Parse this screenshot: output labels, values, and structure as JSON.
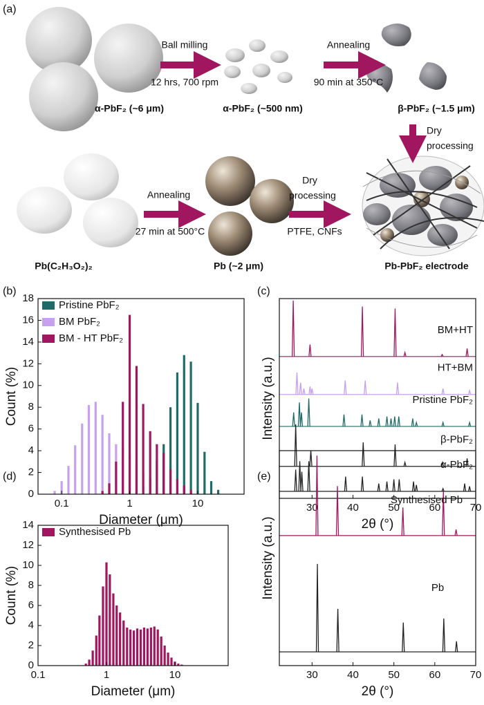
{
  "panels": [
    "(a)",
    "(b)",
    "(c)",
    "(d)",
    "(e)"
  ],
  "schematic": {
    "nodes": [
      {
        "label": "α-PbF₂ (~6 μm)"
      },
      {
        "label": "α-PbF₂ (~500 nm)"
      },
      {
        "label": "β-PbF₂ (~1.5 μm)"
      },
      {
        "label": "Pb(C₂H₃O₂)₂"
      },
      {
        "label": "Pb (~2 μm)"
      },
      {
        "label": "Pb-PbF₂ electrode"
      }
    ],
    "arrows": [
      {
        "above": [
          "Ball milling"
        ],
        "below": [
          "12 hrs, 700 rpm"
        ]
      },
      {
        "above": [
          "Annealing"
        ],
        "below": [
          "90 min at 350°C"
        ]
      },
      {
        "above": [
          "Dry",
          "processing"
        ],
        "below": []
      },
      {
        "above": [
          "Annealing"
        ],
        "below": [
          "27 min at 500°C"
        ]
      },
      {
        "above": [
          "Dry",
          "processing"
        ],
        "below": [
          "PTFE, CNFs"
        ]
      }
    ]
  },
  "chart_data": [
    {
      "type": "bar",
      "x_label": "Diameter (μm)",
      "y_label": "Count (%)",
      "log_x": true,
      "xlim": [
        0.045,
        48
      ],
      "xticks": [
        0.1,
        1,
        10
      ],
      "ylim": [
        0,
        18
      ],
      "yticks": [
        0,
        2,
        4,
        6,
        8,
        10,
        12,
        14,
        16,
        18
      ],
      "legend": "upper left",
      "series": [
        {
          "name": "Pristine PbF₂",
          "color": "#1f6b68",
          "x": [
            1.26,
            1.58,
            2,
            2.51,
            3.16,
            3.98,
            5.01,
            6.31,
            7.94,
            10,
            12.6,
            15.8,
            20
          ],
          "values": [
            0.2,
            0.7,
            1.5,
            3.1,
            4.6,
            8.0,
            11.2,
            12.8,
            12.2,
            8.4,
            3.9,
            1.2,
            0.4
          ]
        },
        {
          "name": "BM PbF₂",
          "color": "#c7a0f0",
          "x": [
            0.079,
            0.1,
            0.126,
            0.158,
            0.2,
            0.251,
            0.316,
            0.398,
            0.501,
            0.631,
            0.794,
            1,
            1.26,
            1.58,
            2,
            2.51,
            3.16
          ],
          "values": [
            0.3,
            1.2,
            2.6,
            4.5,
            6.5,
            8.2,
            8.5,
            7.3,
            5.6,
            4.6,
            4.3,
            3.6,
            2.8,
            2.0,
            1.2,
            0.6,
            0.2
          ]
        },
        {
          "name": "BM - HT PbF₂",
          "color": "#a0175f",
          "x": [
            0.398,
            0.501,
            0.631,
            0.794,
            1,
            1.26,
            1.58,
            2,
            2.51,
            3.16,
            3.98,
            5.01,
            6.31,
            7.94
          ],
          "values": [
            0.3,
            1.0,
            3.0,
            8.5,
            16.5,
            11.8,
            8.3,
            5.8,
            4.6,
            3.8,
            2.3,
            1.4,
            0.8,
            0.4
          ]
        }
      ]
    },
    {
      "type": "stick",
      "x_label": "2θ (°)",
      "y_label": "Intensity (a.u.)",
      "xlim": [
        22,
        70
      ],
      "xticks": [
        30,
        40,
        50,
        60,
        70
      ],
      "ylim": [
        0,
        100
      ],
      "series": [
        {
          "name": "BM+HT",
          "color": "#a0175f",
          "baseline": 71,
          "x": [
            25.4,
            29.5,
            42.3,
            50.3,
            52.7,
            61.8,
            67.9
          ],
          "values": [
            99,
            77,
            96,
            95,
            73,
            72,
            75
          ]
        },
        {
          "name": "HT+BM",
          "color": "#c79ff0",
          "baseline": 52,
          "x": [
            26.3,
            27.2,
            28.0,
            29.5,
            30.0,
            38.1,
            43.0,
            50.9,
            62.0,
            68.5
          ],
          "values": [
            63,
            58,
            55,
            56,
            55,
            59,
            59,
            58,
            55,
            54
          ]
        },
        {
          "name": "Pristine PbF₂",
          "color": "#1f6b68",
          "baseline": 36,
          "x": [
            25.5,
            26.9,
            27.4,
            29.2,
            37.8,
            42.2,
            44.2,
            46.3,
            48.3,
            49.3,
            50.2,
            51.2,
            54.6,
            55.5,
            62.0,
            68.5
          ],
          "values": [
            43,
            48,
            43,
            50,
            42,
            42,
            39,
            40,
            41,
            40,
            41,
            41,
            40,
            38,
            38,
            38
          ]
        },
        {
          "name": "β-PbF₂",
          "color": "#222222",
          "baseline": 16,
          "x": [
            26.0,
            29.7,
            42.5,
            50.3,
            52.7,
            61.9,
            67.9
          ],
          "values": [
            37,
            24,
            28,
            27,
            18,
            18,
            20
          ]
        },
        {
          "name": "α-PbF₂",
          "color": "#222222",
          "baseline": 3.5,
          "x": [
            26.0,
            27.0,
            27.5,
            29.2,
            38.2,
            42.3,
            46.3,
            48.3,
            50.0,
            51.3,
            54.8,
            55.5,
            62.0,
            67.3,
            68.5
          ],
          "values": [
            14.4,
            18.6,
            13.3,
            18.6,
            10.9,
            10.9,
            7.4,
            8.4,
            9.5,
            9.5,
            8.4,
            6.7,
            4.9,
            7.4,
            6.0
          ]
        }
      ]
    },
    {
      "type": "bar",
      "x_label": "Diameter (μm)",
      "y_label": "Count (%)",
      "log_x": true,
      "xlim": [
        0.1,
        60
      ],
      "xticks": [
        0.1,
        1,
        10
      ],
      "ylim": [
        0,
        14
      ],
      "yticks": [
        0,
        2,
        4,
        6,
        8,
        10,
        12,
        14
      ],
      "legend": "upper left",
      "series": [
        {
          "name": "Synthesised Pb",
          "color": "#a0175f",
          "x": [
            0.5,
            0.56,
            0.63,
            0.71,
            0.79,
            0.89,
            1,
            1.12,
            1.26,
            1.41,
            1.58,
            1.78,
            2,
            2.24,
            2.51,
            2.82,
            3.16,
            3.55,
            3.98,
            4.47,
            5.01,
            5.62,
            6.31,
            7.08,
            7.94,
            8.91,
            10,
            11.2,
            12.6
          ],
          "values": [
            0.2,
            0.6,
            1.5,
            3.0,
            5.0,
            7.9,
            10.3,
            9.1,
            7.2,
            6.0,
            5.3,
            4.5,
            3.8,
            3.6,
            3.5,
            3.7,
            3.6,
            3.8,
            3.7,
            3.8,
            3.9,
            3.6,
            2.9,
            2.0,
            1.3,
            0.8,
            0.4,
            0.2,
            0.1
          ]
        }
      ]
    },
    {
      "type": "stick",
      "x_label": "2θ (°)",
      "y_label": "Intensity (a.u.)",
      "xlim": [
        22,
        70
      ],
      "xticks": [
        30,
        40,
        50,
        60,
        70
      ],
      "ylim": [
        0,
        100
      ],
      "series": [
        {
          "name": "Synthesised Pb",
          "color": "#a0175f",
          "baseline": 60.5,
          "x": [
            31.2,
            36.2,
            52.2,
            62.1,
            65.2
          ],
          "values": [
            97.7,
            83.5,
            73.6,
            81,
            63.3
          ]
        },
        {
          "name": "Pb",
          "color": "#222222",
          "baseline": 6.4,
          "x": [
            31.3,
            36.3,
            52.3,
            62.2,
            65.3
          ],
          "values": [
            47.3,
            26.4,
            20,
            21.9,
            11.3
          ]
        }
      ]
    }
  ]
}
